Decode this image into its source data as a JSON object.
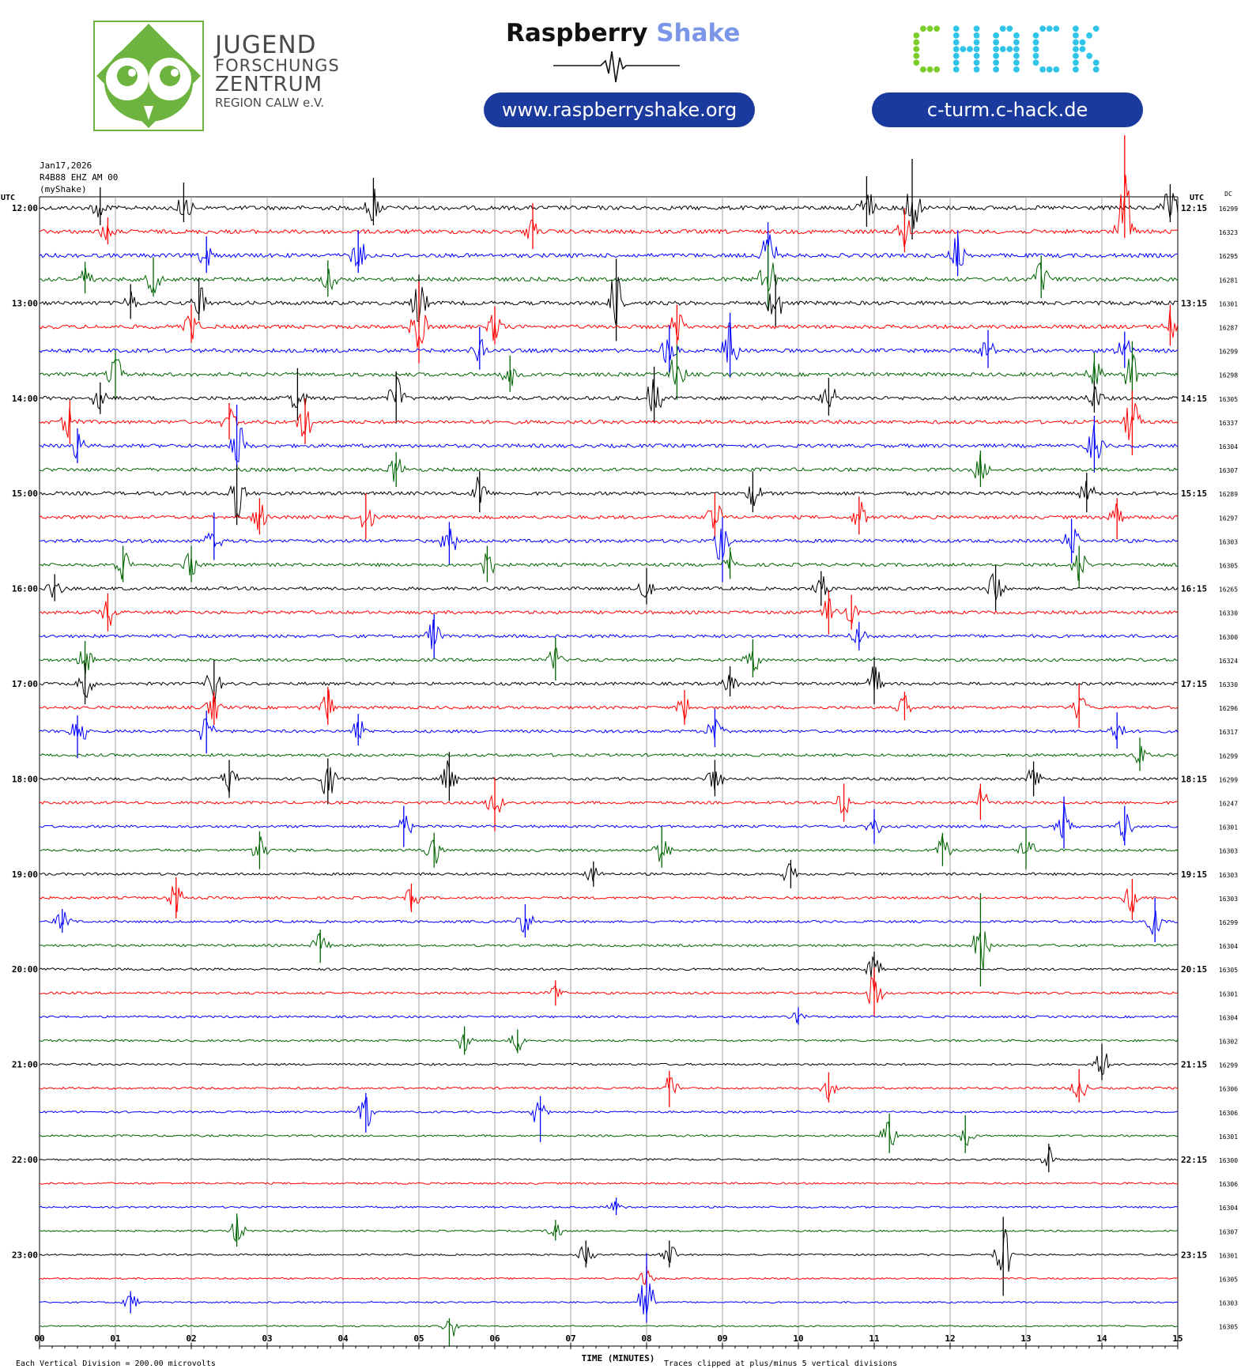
{
  "header": {
    "jfz": {
      "line1": "JUGEND",
      "line2": "FORSCHUNGS",
      "line3": "ZENTRUM",
      "line4": "REGION CALW e.V."
    },
    "raspberry_shake": {
      "word1": "Raspberry",
      "word2": "Shake",
      "url": "www.raspberryshake.org"
    },
    "chack": {
      "logo_text": "CHACK",
      "url": "c-turm.c-hack.de"
    }
  },
  "meta": {
    "date": "Jan17,2026",
    "station": "R4B88 EHZ AM 00",
    "source": "(myShake)"
  },
  "colors": {
    "trace_cycle": [
      "#000000",
      "#ff0000",
      "#0000ff",
      "#006400"
    ],
    "grid": "#a0a0a0",
    "jfz_green": "#6db33f",
    "rs_blue": "#7b96e8",
    "pill_blue": "#1b3a9e",
    "chack_green": "#7ccc2a",
    "chack_blue": "#2fc4e8"
  },
  "chart_data": {
    "type": "line",
    "title": "",
    "xlabel": "TIME (MINUTES)",
    "x_ticks": [
      "00",
      "01",
      "02",
      "03",
      "04",
      "05",
      "06",
      "07",
      "08",
      "09",
      "10",
      "11",
      "12",
      "13",
      "14",
      "15"
    ],
    "xlim": [
      0,
      15
    ],
    "left_axis_title": "UTC",
    "right_axis_title": "UTC",
    "dc_title": "DC",
    "row_minutes": 15,
    "left_hour_labels": [
      "12:00",
      "13:00",
      "14:00",
      "15:00",
      "16:00",
      "17:00",
      "18:00",
      "19:00",
      "20:00",
      "21:00",
      "22:00",
      "23:00"
    ],
    "right_hour_labels": [
      "12:15",
      "13:15",
      "14:15",
      "15:15",
      "16:15",
      "17:15",
      "18:15",
      "19:15",
      "20:15",
      "21:15",
      "22:15",
      "23:15"
    ],
    "dc_offsets": [
      16299,
      16323,
      16295,
      16281,
      16301,
      16287,
      16299,
      16298,
      16305,
      16337,
      16304,
      16307,
      16289,
      16297,
      16303,
      16305,
      16265,
      16330,
      16300,
      16324,
      16330,
      16296,
      16317,
      16299,
      16299,
      16247,
      16301,
      16303,
      16303,
      16303,
      16299,
      16304,
      16305,
      16301,
      16304,
      16302,
      16299,
      16306,
      16306,
      16301,
      16300,
      16306,
      16304,
      16307,
      16301,
      16305,
      16303,
      16305
    ],
    "footnote_left": "Each Vertical Division =  200.00 microvolts",
    "footnote_right": "Traces clipped at plus/minus 5 vertical divisions",
    "events": [
      [
        0,
        0.8,
        -26,
        22
      ],
      [
        0,
        1.9,
        -32,
        18
      ],
      [
        0,
        4.4,
        -38,
        22
      ],
      [
        0,
        10.9,
        -40,
        24
      ],
      [
        0,
        11.5,
        -62,
        40
      ],
      [
        0,
        14.9,
        -30,
        18
      ],
      [
        1,
        0.9,
        -18,
        16
      ],
      [
        1,
        6.5,
        -36,
        22
      ],
      [
        1,
        11.4,
        -30,
        26
      ],
      [
        1,
        14.3,
        -122,
        8
      ],
      [
        2,
        2.2,
        -24,
        22
      ],
      [
        2,
        4.2,
        -32,
        22
      ],
      [
        2,
        9.6,
        -42,
        30
      ],
      [
        2,
        12.1,
        -32,
        26
      ],
      [
        3,
        0.6,
        -22,
        18
      ],
      [
        3,
        1.5,
        -28,
        22
      ],
      [
        3,
        3.8,
        -24,
        22
      ],
      [
        3,
        9.6,
        -44,
        40
      ],
      [
        3,
        13.2,
        -30,
        24
      ],
      [
        4,
        1.2,
        -24,
        20
      ],
      [
        4,
        2.1,
        -32,
        22
      ],
      [
        4,
        5.0,
        -36,
        30
      ],
      [
        4,
        7.6,
        -56,
        48
      ],
      [
        4,
        9.7,
        -36,
        30
      ],
      [
        5,
        2.0,
        -28,
        20
      ],
      [
        5,
        5.0,
        -58,
        46
      ],
      [
        5,
        6.0,
        -26,
        22
      ],
      [
        5,
        8.4,
        -28,
        22
      ],
      [
        5,
        14.9,
        -28,
        24
      ],
      [
        6,
        5.8,
        -30,
        24
      ],
      [
        6,
        8.3,
        -32,
        28
      ],
      [
        6,
        9.1,
        -48,
        34
      ],
      [
        6,
        12.5,
        -26,
        22
      ],
      [
        6,
        14.3,
        -24,
        22
      ],
      [
        7,
        1.0,
        -30,
        30
      ],
      [
        7,
        6.2,
        -24,
        22
      ],
      [
        7,
        8.4,
        -38,
        32
      ],
      [
        7,
        13.9,
        -28,
        22
      ],
      [
        7,
        14.4,
        -42,
        30
      ],
      [
        8,
        0.8,
        -20,
        20
      ],
      [
        8,
        3.4,
        -38,
        28
      ],
      [
        8,
        4.7,
        -34,
        32
      ],
      [
        8,
        8.1,
        -40,
        30
      ],
      [
        8,
        10.4,
        -26,
        22
      ],
      [
        8,
        13.9,
        -22,
        18
      ],
      [
        9,
        0.4,
        -28,
        28
      ],
      [
        9,
        2.5,
        -24,
        22
      ],
      [
        9,
        3.5,
        -30,
        28
      ],
      [
        9,
        14.4,
        -40,
        42
      ],
      [
        10,
        0.5,
        -22,
        22
      ],
      [
        10,
        2.6,
        -52,
        28
      ],
      [
        10,
        13.9,
        -38,
        34
      ],
      [
        11,
        4.7,
        -22,
        22
      ],
      [
        11,
        12.4,
        -24,
        22
      ],
      [
        12,
        2.6,
        -36,
        40
      ],
      [
        12,
        5.8,
        -28,
        24
      ],
      [
        12,
        9.4,
        -28,
        24
      ],
      [
        12,
        13.8,
        -26,
        24
      ],
      [
        13,
        2.9,
        -24,
        22
      ],
      [
        13,
        4.3,
        -30,
        28
      ],
      [
        13,
        8.9,
        -30,
        28
      ],
      [
        13,
        10.8,
        -26,
        22
      ],
      [
        13,
        14.2,
        -24,
        28
      ],
      [
        14,
        2.3,
        -36,
        24
      ],
      [
        14,
        5.4,
        -24,
        30
      ],
      [
        14,
        9.0,
        -30,
        52
      ],
      [
        14,
        13.6,
        -28,
        28
      ],
      [
        15,
        1.1,
        -24,
        22
      ],
      [
        15,
        2.0,
        -24,
        22
      ],
      [
        15,
        5.9,
        -24,
        22
      ],
      [
        15,
        9.1,
        -22,
        18
      ],
      [
        15,
        13.7,
        -24,
        30
      ],
      [
        16,
        0.2,
        -18,
        16
      ],
      [
        16,
        8.0,
        -26,
        20
      ],
      [
        16,
        10.3,
        -22,
        22
      ],
      [
        16,
        12.6,
        -30,
        28
      ],
      [
        17,
        0.9,
        -24,
        24
      ],
      [
        17,
        10.4,
        -28,
        28
      ],
      [
        17,
        10.7,
        -22,
        22
      ],
      [
        18,
        5.2,
        -28,
        28
      ],
      [
        18,
        10.8,
        -18,
        18
      ],
      [
        19,
        0.6,
        -24,
        24
      ],
      [
        19,
        6.8,
        -28,
        26
      ],
      [
        19,
        9.4,
        -26,
        22
      ],
      [
        20,
        0.6,
        -26,
        26
      ],
      [
        20,
        2.3,
        -30,
        28
      ],
      [
        20,
        9.1,
        -22,
        16
      ],
      [
        20,
        11.0,
        -34,
        26
      ],
      [
        21,
        2.3,
        -20,
        22
      ],
      [
        21,
        3.8,
        -26,
        22
      ],
      [
        21,
        8.5,
        -22,
        22
      ],
      [
        21,
        11.4,
        -20,
        16
      ],
      [
        21,
        13.7,
        -30,
        26
      ],
      [
        22,
        0.5,
        -20,
        34
      ],
      [
        22,
        2.2,
        -26,
        28
      ],
      [
        22,
        4.2,
        -22,
        18
      ],
      [
        22,
        8.9,
        -28,
        20
      ],
      [
        22,
        14.2,
        -24,
        22
      ],
      [
        23,
        14.5,
        -22,
        20
      ],
      [
        24,
        2.5,
        -24,
        24
      ],
      [
        24,
        3.8,
        -26,
        32
      ],
      [
        24,
        5.4,
        -34,
        28
      ],
      [
        24,
        8.9,
        -24,
        22
      ],
      [
        24,
        13.1,
        -22,
        22
      ],
      [
        25,
        6.0,
        -32,
        36
      ],
      [
        25,
        10.6,
        -24,
        24
      ],
      [
        25,
        12.4,
        -24,
        22
      ],
      [
        26,
        4.8,
        -26,
        26
      ],
      [
        26,
        11.0,
        -22,
        22
      ],
      [
        26,
        13.5,
        -38,
        28
      ],
      [
        26,
        14.3,
        -26,
        24
      ],
      [
        27,
        2.9,
        -24,
        24
      ],
      [
        27,
        5.2,
        -22,
        22
      ],
      [
        27,
        8.2,
        -30,
        22
      ],
      [
        27,
        11.9,
        -22,
        20
      ],
      [
        27,
        13.0,
        -28,
        24
      ],
      [
        28,
        7.3,
        -16,
        16
      ],
      [
        28,
        9.9,
        -18,
        18
      ],
      [
        29,
        1.8,
        -26,
        26
      ],
      [
        29,
        4.9,
        -18,
        18
      ],
      [
        29,
        14.4,
        -24,
        28
      ],
      [
        30,
        0.3,
        -16,
        14
      ],
      [
        30,
        6.4,
        -22,
        20
      ],
      [
        30,
        14.7,
        -30,
        26
      ],
      [
        31,
        3.7,
        -20,
        22
      ],
      [
        31,
        12.4,
        -66,
        52
      ],
      [
        32,
        11.0,
        -22,
        22
      ],
      [
        33,
        6.8,
        -16,
        16
      ],
      [
        33,
        11.0,
        -32,
        30
      ],
      [
        34,
        10.0,
        -12,
        10
      ],
      [
        35,
        5.6,
        -18,
        18
      ],
      [
        35,
        6.3,
        -14,
        16
      ],
      [
        36,
        14.0,
        -26,
        20
      ],
      [
        37,
        8.3,
        -22,
        24
      ],
      [
        37,
        10.4,
        -20,
        18
      ],
      [
        37,
        13.7,
        -24,
        18
      ],
      [
        38,
        4.3,
        -24,
        26
      ],
      [
        38,
        6.6,
        -20,
        38
      ],
      [
        39,
        11.2,
        -28,
        22
      ],
      [
        39,
        12.2,
        -26,
        22
      ],
      [
        40,
        13.3,
        -20,
        16
      ],
      [
        42,
        7.6,
        -12,
        10
      ],
      [
        43,
        2.6,
        -22,
        20
      ],
      [
        43,
        6.8,
        -14,
        12
      ],
      [
        44,
        7.2,
        -18,
        16
      ],
      [
        44,
        8.3,
        -18,
        16
      ],
      [
        44,
        12.7,
        -48,
        52
      ],
      [
        45,
        8.0,
        -16,
        12
      ],
      [
        46,
        1.2,
        -14,
        14
      ],
      [
        46,
        8.0,
        -62,
        26
      ],
      [
        47,
        5.4,
        -10,
        26
      ]
    ]
  }
}
